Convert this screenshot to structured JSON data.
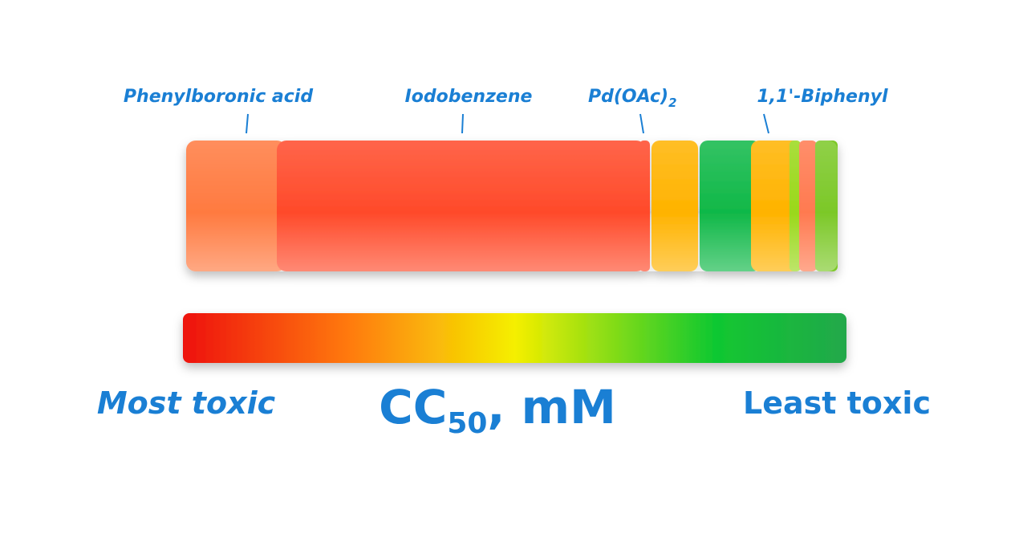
{
  "labels": [
    {
      "text": "Phenylboronic acid"
    },
    {
      "text": "Iodobenzene"
    },
    {
      "text": "Pd(OAc)",
      "subscript": "2"
    },
    {
      "text": "1,1'-Biphenyl"
    }
  ],
  "scale": {
    "left": "Most toxic",
    "unit": {
      "text": "CC",
      "subscript": "50",
      "suffix": ", mM"
    },
    "right": "Least toxic"
  }
}
